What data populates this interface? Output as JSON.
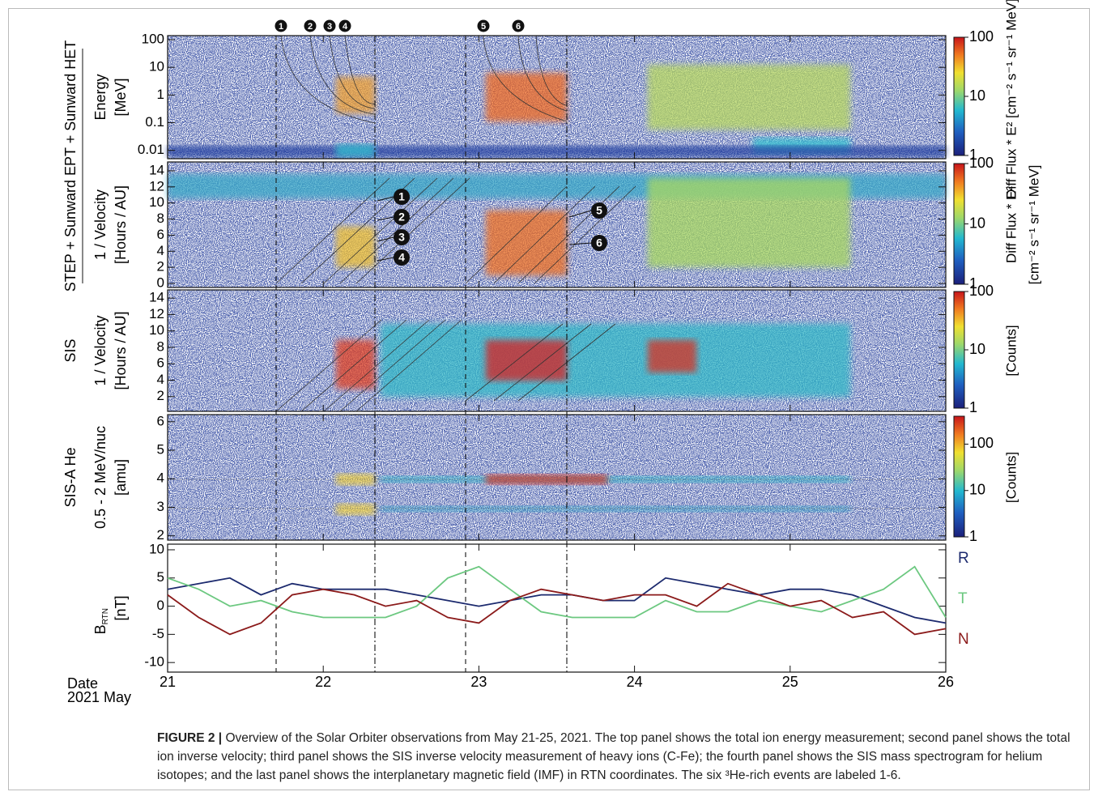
{
  "figure": {
    "group_label": "STEP + Sunward EPT + Sunward HET",
    "event_labels": [
      "1",
      "2",
      "3",
      "4",
      "5",
      "6"
    ],
    "x_axis": {
      "label": "Date",
      "sublabel": "2021 May",
      "xlim": [
        21,
        26
      ],
      "xticks": [
        21,
        22,
        23,
        24,
        25,
        26
      ]
    }
  },
  "chart_data": [
    {
      "type": "heatmap",
      "ylabel": [
        "Energy",
        "[MeV]"
      ],
      "log": true,
      "ylim": [
        0.005,
        140
      ],
      "yticks": [
        100,
        10,
        1,
        0.1,
        0.01
      ],
      "colorbar": {
        "label": [
          "Diff Flux * E² [cm⁻² s⁻¹ sr⁻¹ MeV]"
        ],
        "lim": [
          1,
          100
        ],
        "ticks": [
          100,
          10,
          1
        ]
      }
    },
    {
      "type": "heatmap",
      "ylabel": [
        "1 / Velocity",
        "[Hours / AU]"
      ],
      "log": false,
      "ylim": [
        -0.5,
        15.1
      ],
      "yticks": [
        14,
        12,
        10,
        8,
        6,
        4,
        2,
        0
      ],
      "colorbar": {
        "label": [
          "Diff Flux * E²",
          "[cm⁻² s⁻¹ sr⁻¹ MeV]"
        ],
        "lim": [
          1,
          100
        ],
        "ticks": [
          100,
          10,
          1
        ]
      }
    },
    {
      "type": "heatmap",
      "group": "SIS",
      "ylabel": [
        "1 / Velocity",
        "[Hours / AU]"
      ],
      "log": false,
      "ylim": [
        0.2,
        15
      ],
      "yticks": [
        14,
        12,
        10,
        8,
        6,
        4,
        2
      ],
      "colorbar": {
        "label": [
          "[Counts]"
        ],
        "lim": [
          1,
          100
        ],
        "ticks": [
          100,
          10,
          1
        ]
      }
    },
    {
      "type": "heatmap",
      "group": "SIS-A He",
      "ylabel": [
        "0.5 - 2 MeV/nuc",
        "[amu]"
      ],
      "log": false,
      "ylim": [
        1.85,
        6.25
      ],
      "yticks": [
        6,
        5,
        4,
        3,
        2
      ],
      "colorbar": {
        "label": [
          "[Counts]"
        ],
        "lim": [
          1,
          400
        ],
        "ticks": [
          100,
          10,
          1
        ]
      }
    },
    {
      "type": "line",
      "ylabel": [
        "B",
        "[nT]"
      ],
      "ylabel_sub": "RTN",
      "ylim": [
        -11.7,
        11
      ],
      "yticks": [
        10,
        5,
        0,
        -5,
        -10
      ],
      "x": [
        21,
        21.2,
        21.4,
        21.6,
        21.8,
        22,
        22.2,
        22.4,
        22.6,
        22.8,
        23,
        23.2,
        23.4,
        23.6,
        23.8,
        24,
        24.2,
        24.4,
        24.6,
        24.8,
        25,
        25.2,
        25.4,
        25.6,
        25.8,
        26
      ],
      "series": [
        {
          "name": "R",
          "color": "#1c2a6e",
          "values": [
            3,
            4,
            5,
            2,
            4,
            3,
            3,
            3,
            2,
            1,
            0,
            1,
            2,
            2,
            1,
            1,
            5,
            4,
            3,
            2,
            3,
            3,
            2,
            0,
            -2,
            -3
          ]
        },
        {
          "name": "T",
          "color": "#6cc880",
          "values": [
            5,
            3,
            0,
            1,
            -1,
            -2,
            -2,
            -2,
            0,
            5,
            7,
            3,
            -1,
            -2,
            -2,
            -2,
            1,
            -1,
            -1,
            1,
            0,
            -1,
            1,
            3,
            7,
            -2
          ]
        },
        {
          "name": "N",
          "color": "#8b1a1a",
          "values": [
            2,
            -2,
            -5,
            -3,
            2,
            3,
            2,
            0,
            1,
            -2,
            -3,
            1,
            3,
            2,
            1,
            2,
            2,
            0,
            4,
            2,
            0,
            1,
            -2,
            -1,
            -5,
            -4
          ]
        }
      ]
    }
  ],
  "caption": {
    "label": "FIGURE 2 |",
    "text": "Overview of the Solar Orbiter observations from May 21-25, 2021. The top panel shows the total ion energy measurement; second panel shows the total ion inverse velocity; third panel shows the SIS inverse velocity measurement of heavy ions (C-Fe); the fourth panel shows the SIS mass spectrogram for helium isotopes; and the last panel shows the interplanetary magnetic field (IMF) in RTN coordinates. The six ³He-rich events are labeled 1-6."
  }
}
